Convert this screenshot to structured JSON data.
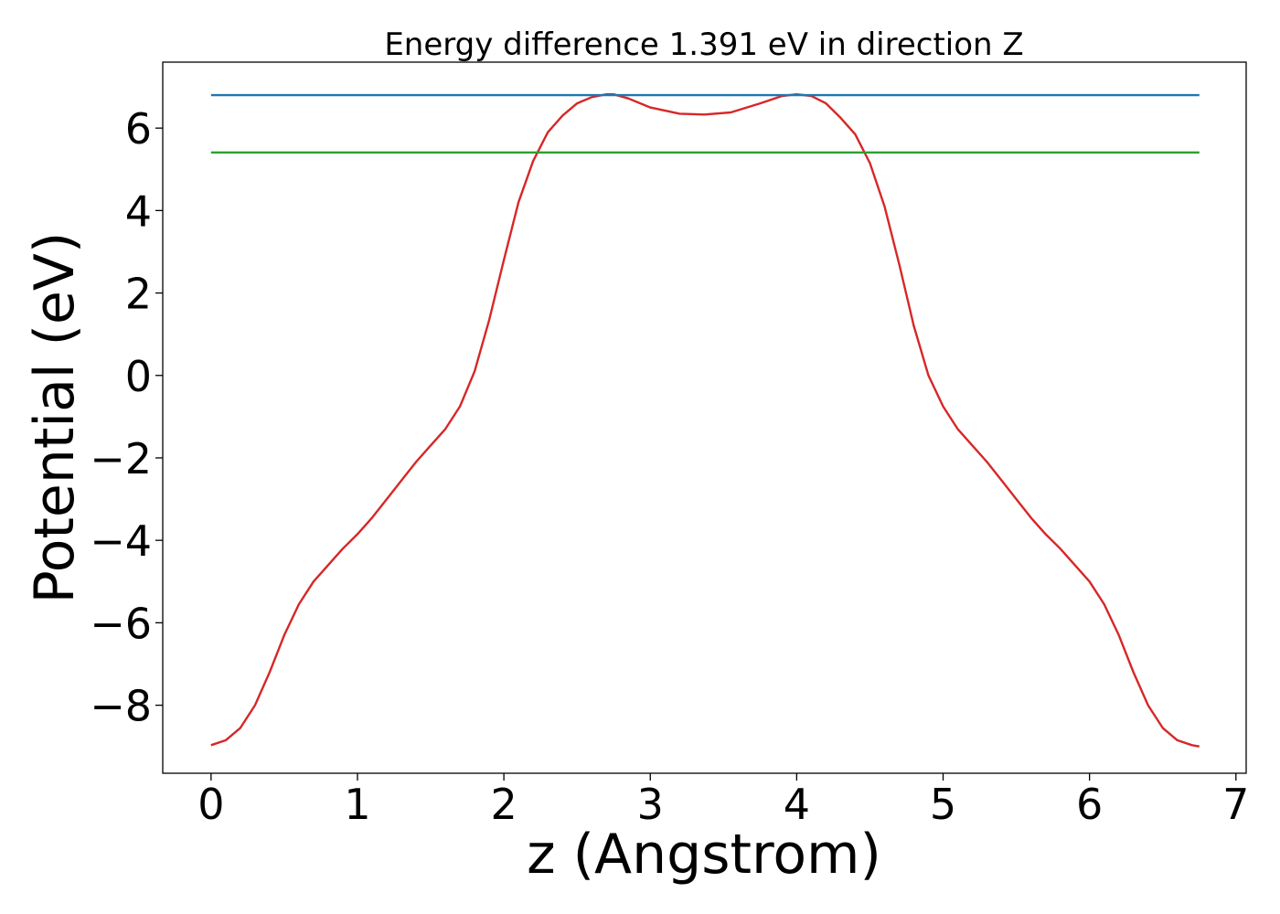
{
  "chart_data": {
    "type": "line",
    "title": "Energy difference 1.391 eV in direction Z",
    "xlabel": "z (Angstrom)",
    "ylabel": "Potential (eV)",
    "xlim": [
      -0.33,
      7.07
    ],
    "ylim": [
      -9.65,
      7.6
    ],
    "xticks": [
      0,
      1,
      2,
      3,
      4,
      5,
      6,
      7
    ],
    "xtick_labels": [
      "0",
      "1",
      "2",
      "3",
      "4",
      "5",
      "6",
      "7"
    ],
    "yticks": [
      -8,
      -6,
      -4,
      -2,
      0,
      2,
      4,
      6
    ],
    "ytick_labels": [
      "−8",
      "−6",
      "−4",
      "−2",
      "0",
      "2",
      "4",
      "6"
    ],
    "grid": false,
    "series": [
      {
        "color": "#d62728",
        "x": [
          0,
          0.1,
          0.2,
          0.3,
          0.4,
          0.5,
          0.6,
          0.7,
          0.8,
          0.9,
          1.0,
          1.1,
          1.2,
          1.3,
          1.4,
          1.5,
          1.6,
          1.7,
          1.8,
          1.9,
          2.0,
          2.1,
          2.2,
          2.3,
          2.4,
          2.5,
          2.6,
          2.7,
          2.75,
          2.85,
          3.0,
          3.2,
          3.37,
          3.55,
          3.75,
          3.9,
          4.0,
          4.1,
          4.2,
          4.3,
          4.4,
          4.5,
          4.6,
          4.7,
          4.8,
          4.9,
          5.0,
          5.1,
          5.2,
          5.3,
          5.4,
          5.5,
          5.6,
          5.7,
          5.8,
          5.9,
          6.0,
          6.1,
          6.2,
          6.3,
          6.4,
          6.5,
          6.6,
          6.7,
          6.75
        ],
        "y": [
          -8.97,
          -8.85,
          -8.55,
          -8.0,
          -7.2,
          -6.3,
          -5.55,
          -5.0,
          -4.6,
          -4.2,
          -3.85,
          -3.45,
          -3.0,
          -2.55,
          -2.1,
          -1.7,
          -1.3,
          -0.75,
          0.1,
          1.35,
          2.8,
          4.2,
          5.2,
          5.9,
          6.3,
          6.6,
          6.75,
          6.82,
          6.82,
          6.72,
          6.5,
          6.35,
          6.33,
          6.38,
          6.6,
          6.78,
          6.82,
          6.78,
          6.6,
          6.25,
          5.85,
          5.15,
          4.1,
          2.7,
          1.2,
          0.0,
          -0.75,
          -1.3,
          -1.7,
          -2.1,
          -2.55,
          -3.0,
          -3.45,
          -3.85,
          -4.2,
          -4.6,
          -5.0,
          -5.55,
          -6.3,
          -7.2,
          -8.0,
          -8.55,
          -8.85,
          -8.97,
          -9.0
        ]
      },
      {
        "color": "#1f77b4",
        "x": [
          0,
          6.75
        ],
        "y": [
          6.8,
          6.8
        ]
      },
      {
        "color": "#2ca02c",
        "x": [
          0,
          6.75
        ],
        "y": [
          5.41,
          5.41
        ]
      }
    ]
  }
}
